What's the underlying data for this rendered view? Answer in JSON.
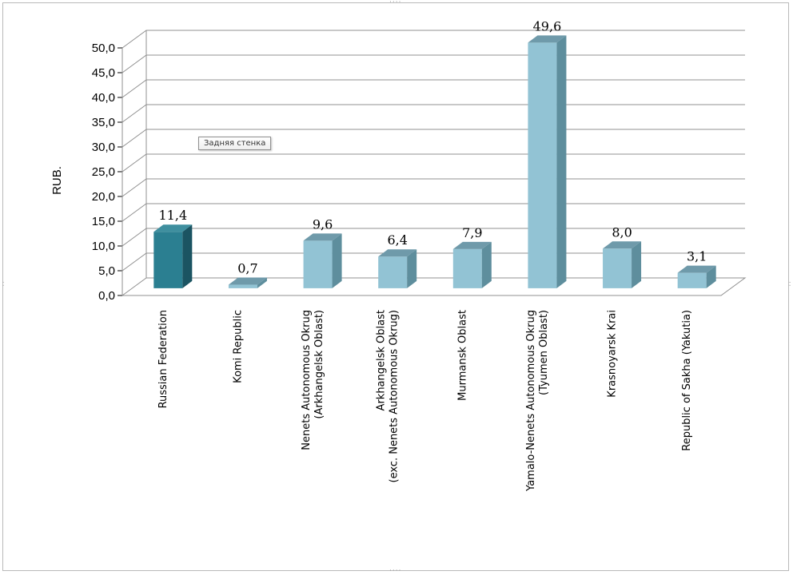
{
  "chart_data": {
    "type": "bar",
    "title": "",
    "xlabel": "",
    "ylabel": "RUB.",
    "ylim": [
      0,
      50
    ],
    "ytick_step": 5,
    "ytick_labels": [
      "0,0",
      "5,0",
      "10,0",
      "15,0",
      "20,0",
      "25,0",
      "30,0",
      "35,0",
      "40,0",
      "45,0",
      "50,0"
    ],
    "grid": true,
    "legend": "none",
    "categories": [
      [
        "Russian Federation"
      ],
      [
        "Komi Republic"
      ],
      [
        "Nenets Autonomous Okrug",
        "(Arkhangelsk Oblast)"
      ],
      [
        "Arkhangelsk Oblast",
        "(exc. Nenets Autonomous Okrug)"
      ],
      [
        "Murmansk Oblast"
      ],
      [
        "Yamalo-Nenets Autonomous Okrug",
        "(Tyumen Oblast)"
      ],
      [
        "Krasnoyarsk Krai"
      ],
      [
        "Republic of Sakha (Yakutia)"
      ]
    ],
    "values": [
      11.4,
      0.7,
      9.6,
      6.4,
      7.9,
      49.6,
      8.0,
      3.1
    ],
    "data_labels": [
      "11,4",
      "0,7",
      "9,6",
      "6,4",
      "7,9",
      "49,6",
      "8,0",
      "3,1"
    ],
    "highlight_index": 0,
    "colors": {
      "highlight_front": "#2b7f91",
      "highlight_side": "#1b5462",
      "highlight_top": "#3f8f9f",
      "bar_front": "#92c3d4",
      "bar_side": "#5e8e9d",
      "bar_top": "#6f9aaa",
      "grid": "#909090",
      "axis_text": "#000000"
    }
  },
  "tooltip": {
    "text": "Задняя стенка"
  }
}
